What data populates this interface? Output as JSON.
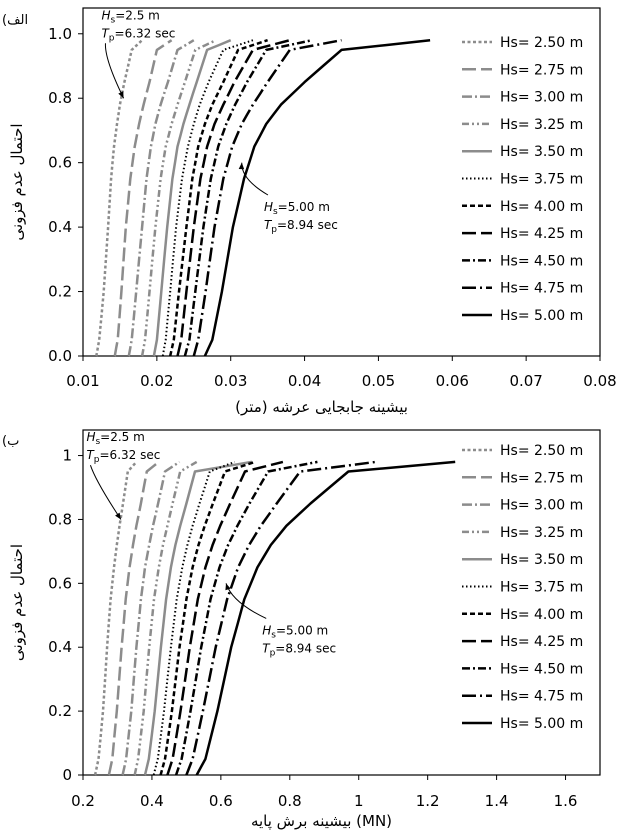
{
  "chart_data": [
    {
      "type": "line",
      "panel_label": "(الف",
      "xlabel": "بیشینه جابجایی عرشه (متر)",
      "ylabel": "احتمال عدم فزونی",
      "xlim": [
        0.01,
        0.08
      ],
      "ylim": [
        0,
        1.08
      ],
      "xticks": [
        0.01,
        0.02,
        0.03,
        0.04,
        0.05,
        0.06,
        0.07,
        0.08
      ],
      "xtick_labels": [
        "0.01",
        "0.02",
        "0.03",
        "0.04",
        "0.05",
        "0.06",
        "0.07",
        "0.08"
      ],
      "yticks": [
        0,
        0.2,
        0.4,
        0.6,
        0.8,
        1.0
      ],
      "ytick_labels": [
        "0.0",
        "0.2",
        "0.4",
        "0.6",
        "0.8",
        "1.0"
      ],
      "grid": false,
      "legend_position": "right",
      "annotations": [
        {
          "hs": "=2.5 m",
          "tp": "=6.32 sec",
          "at": [
            0.0125,
            1.045
          ],
          "arrow_to": [
            0.0155,
            0.8
          ]
        },
        {
          "hs": "=5.00 m",
          "tp": "=8.94 sec",
          "at": [
            0.0345,
            0.45
          ],
          "arrow_to": [
            0.0315,
            0.6
          ]
        }
      ],
      "series": [
        {
          "name": "Hs= 2.50 m",
          "x": [
            0.0118,
            0.0122,
            0.0128,
            0.0134,
            0.0138,
            0.0142,
            0.0146,
            0.015,
            0.0156,
            0.0166,
            0.018
          ],
          "y": [
            0,
            0.05,
            0.2,
            0.4,
            0.55,
            0.65,
            0.72,
            0.78,
            0.85,
            0.95,
            0.98
          ]
        },
        {
          "name": "Hs= 2.75 m",
          "x": [
            0.0143,
            0.0147,
            0.0152,
            0.0158,
            0.0164,
            0.017,
            0.0176,
            0.0182,
            0.019,
            0.02,
            0.022
          ],
          "y": [
            0,
            0.05,
            0.2,
            0.4,
            0.55,
            0.65,
            0.72,
            0.78,
            0.85,
            0.95,
            0.98
          ]
        },
        {
          "name": "Hs= 3.00 m",
          "x": [
            0.0162,
            0.0166,
            0.0172,
            0.018,
            0.0186,
            0.0192,
            0.0198,
            0.0205,
            0.0215,
            0.0228,
            0.025
          ],
          "y": [
            0,
            0.05,
            0.2,
            0.4,
            0.55,
            0.65,
            0.72,
            0.78,
            0.85,
            0.95,
            0.98
          ]
        },
        {
          "name": "Hs= 3.25 m",
          "x": [
            0.018,
            0.0184,
            0.019,
            0.0198,
            0.0205,
            0.0212,
            0.022,
            0.0228,
            0.0238,
            0.0252,
            0.028
          ],
          "y": [
            0,
            0.05,
            0.2,
            0.4,
            0.55,
            0.65,
            0.72,
            0.78,
            0.85,
            0.95,
            0.98
          ]
        },
        {
          "name": "Hs= 3.50 m",
          "x": [
            0.0196,
            0.02,
            0.0206,
            0.0214,
            0.0221,
            0.0228,
            0.0236,
            0.0244,
            0.0254,
            0.0268,
            0.03
          ],
          "y": [
            0,
            0.05,
            0.2,
            0.4,
            0.55,
            0.65,
            0.72,
            0.78,
            0.85,
            0.95,
            0.98
          ]
        },
        {
          "name": "Hs= 3.75 m",
          "x": [
            0.0208,
            0.0212,
            0.0218,
            0.0226,
            0.0234,
            0.0242,
            0.025,
            0.0258,
            0.027,
            0.029,
            0.033
          ],
          "y": [
            0,
            0.05,
            0.2,
            0.4,
            0.55,
            0.65,
            0.72,
            0.78,
            0.85,
            0.95,
            0.98
          ]
        },
        {
          "name": "Hs= 4.00 m",
          "x": [
            0.0218,
            0.0223,
            0.023,
            0.024,
            0.0248,
            0.0256,
            0.0265,
            0.0275,
            0.029,
            0.031,
            0.035
          ],
          "y": [
            0,
            0.05,
            0.2,
            0.4,
            0.55,
            0.65,
            0.72,
            0.78,
            0.85,
            0.95,
            0.98
          ]
        },
        {
          "name": "Hs= 4.25 m",
          "x": [
            0.0228,
            0.0233,
            0.024,
            0.025,
            0.0259,
            0.0268,
            0.0278,
            0.029,
            0.0305,
            0.033,
            0.038
          ],
          "y": [
            0,
            0.05,
            0.2,
            0.4,
            0.55,
            0.65,
            0.72,
            0.78,
            0.85,
            0.95,
            0.98
          ]
        },
        {
          "name": "Hs= 4.50 m",
          "x": [
            0.0238,
            0.0244,
            0.0252,
            0.0263,
            0.0273,
            0.0283,
            0.0294,
            0.0306,
            0.0322,
            0.0348,
            0.041
          ],
          "y": [
            0,
            0.05,
            0.2,
            0.4,
            0.55,
            0.65,
            0.72,
            0.78,
            0.85,
            0.95,
            0.98
          ]
        },
        {
          "name": "Hs= 4.75 m",
          "x": [
            0.025,
            0.0256,
            0.0266,
            0.0278,
            0.029,
            0.0302,
            0.0315,
            0.033,
            0.035,
            0.038,
            0.045
          ],
          "y": [
            0,
            0.05,
            0.2,
            0.4,
            0.55,
            0.65,
            0.72,
            0.78,
            0.85,
            0.95,
            0.98
          ]
        },
        {
          "name": "Hs= 5.00 m",
          "x": [
            0.0265,
            0.0275,
            0.0288,
            0.0303,
            0.0318,
            0.0332,
            0.0348,
            0.0368,
            0.04,
            0.045,
            0.057
          ],
          "y": [
            0,
            0.05,
            0.2,
            0.4,
            0.55,
            0.65,
            0.72,
            0.78,
            0.85,
            0.95,
            0.98
          ]
        }
      ]
    },
    {
      "type": "line",
      "panel_label": "(ب",
      "xlabel": "بیشینه برش پایه (MN)",
      "ylabel": "احتمال عدم فزونی",
      "xlim": [
        0.2,
        1.7
      ],
      "ylim": [
        0,
        1.08
      ],
      "xticks": [
        0.2,
        0.4,
        0.6,
        0.8,
        1.0,
        1.2,
        1.4,
        1.6
      ],
      "xtick_labels": [
        "0.2",
        "0.4",
        "0.6",
        "0.8",
        "1",
        "1.2",
        "1.4",
        "1.6"
      ],
      "yticks": [
        0,
        0.2,
        0.4,
        0.6,
        0.8,
        1.0
      ],
      "ytick_labels": [
        "0",
        "0.2",
        "0.4",
        "0.6",
        "0.8",
        "1"
      ],
      "grid": false,
      "legend_position": "right",
      "annotations": [
        {
          "hs": "=2.5 m",
          "tp": "=6.32 sec",
          "at": [
            0.21,
            1.045
          ],
          "arrow_to": [
            0.31,
            0.8
          ]
        },
        {
          "hs": "=5.00 m",
          "tp": "=8.94 sec",
          "at": [
            0.72,
            0.44
          ],
          "arrow_to": [
            0.615,
            0.6
          ]
        }
      ],
      "series": [
        {
          "name": "Hs= 2.50 m",
          "x": [
            0.235,
            0.245,
            0.258,
            0.27,
            0.28,
            0.29,
            0.298,
            0.306,
            0.316,
            0.33,
            0.355
          ],
          "y": [
            0,
            0.05,
            0.2,
            0.4,
            0.55,
            0.65,
            0.72,
            0.78,
            0.85,
            0.95,
            0.98
          ]
        },
        {
          "name": "Hs= 2.75 m",
          "x": [
            0.275,
            0.285,
            0.298,
            0.312,
            0.324,
            0.335,
            0.345,
            0.355,
            0.368,
            0.385,
            0.42
          ],
          "y": [
            0,
            0.05,
            0.2,
            0.4,
            0.55,
            0.65,
            0.72,
            0.78,
            0.85,
            0.95,
            0.98
          ]
        },
        {
          "name": "Hs= 3.00 m",
          "x": [
            0.315,
            0.325,
            0.34,
            0.355,
            0.368,
            0.38,
            0.392,
            0.403,
            0.418,
            0.438,
            0.48
          ],
          "y": [
            0,
            0.05,
            0.2,
            0.4,
            0.55,
            0.65,
            0.72,
            0.78,
            0.85,
            0.95,
            0.98
          ]
        },
        {
          "name": "Hs= 3.25 m",
          "x": [
            0.35,
            0.36,
            0.376,
            0.392,
            0.406,
            0.42,
            0.432,
            0.445,
            0.46,
            0.482,
            0.53
          ],
          "y": [
            0,
            0.05,
            0.2,
            0.4,
            0.55,
            0.65,
            0.72,
            0.78,
            0.85,
            0.95,
            0.98
          ]
        },
        {
          "name": "Hs= 3.50 m",
          "x": [
            0.38,
            0.391,
            0.408,
            0.426,
            0.441,
            0.455,
            0.468,
            0.482,
            0.5,
            0.525,
            0.69
          ],
          "y": [
            0,
            0.05,
            0.2,
            0.4,
            0.55,
            0.65,
            0.72,
            0.78,
            0.85,
            0.95,
            0.98
          ]
        },
        {
          "name": "Hs= 3.75 m",
          "x": [
            0.405,
            0.417,
            0.435,
            0.455,
            0.472,
            0.488,
            0.503,
            0.518,
            0.538,
            0.568,
            0.64
          ],
          "y": [
            0,
            0.05,
            0.2,
            0.4,
            0.55,
            0.65,
            0.72,
            0.78,
            0.85,
            0.95,
            0.98
          ]
        },
        {
          "name": "Hs= 4.00 m",
          "x": [
            0.425,
            0.438,
            0.458,
            0.48,
            0.5,
            0.518,
            0.535,
            0.553,
            0.577,
            0.612,
            0.7
          ],
          "y": [
            0,
            0.05,
            0.2,
            0.4,
            0.55,
            0.65,
            0.72,
            0.78,
            0.85,
            0.95,
            0.98
          ]
        },
        {
          "name": "Hs= 4.25 m",
          "x": [
            0.445,
            0.46,
            0.483,
            0.51,
            0.533,
            0.555,
            0.576,
            0.598,
            0.627,
            0.67,
            0.78
          ],
          "y": [
            0,
            0.05,
            0.2,
            0.4,
            0.55,
            0.65,
            0.72,
            0.78,
            0.85,
            0.95,
            0.98
          ]
        },
        {
          "name": "Hs= 4.50 m",
          "x": [
            0.47,
            0.486,
            0.512,
            0.543,
            0.57,
            0.596,
            0.621,
            0.648,
            0.683,
            0.737,
            0.88
          ],
          "y": [
            0,
            0.05,
            0.2,
            0.4,
            0.55,
            0.65,
            0.72,
            0.78,
            0.85,
            0.95,
            0.98
          ]
        },
        {
          "name": "Hs= 4.75 m",
          "x": [
            0.5,
            0.518,
            0.548,
            0.585,
            0.618,
            0.65,
            0.682,
            0.716,
            0.762,
            0.83,
            1.05
          ],
          "y": [
            0,
            0.05,
            0.2,
            0.4,
            0.55,
            0.65,
            0.72,
            0.78,
            0.85,
            0.95,
            0.98
          ]
        },
        {
          "name": "Hs= 5.00 m",
          "x": [
            0.53,
            0.555,
            0.59,
            0.63,
            0.668,
            0.706,
            0.745,
            0.79,
            0.86,
            0.97,
            1.28
          ],
          "y": [
            0,
            0.05,
            0.2,
            0.4,
            0.55,
            0.65,
            0.72,
            0.78,
            0.85,
            0.95,
            0.98
          ]
        }
      ]
    }
  ],
  "series_styles": [
    {
      "color": "#8c8c8c",
      "dash": "3 2.5",
      "width": 2.5
    },
    {
      "color": "#8c8c8c",
      "dash": "14 5",
      "width": 2.5
    },
    {
      "color": "#8c8c8c",
      "dash": "10 3 2 3",
      "width": 2.5
    },
    {
      "color": "#8c8c8c",
      "dash": "7 3 2 3 2 3",
      "width": 2.5
    },
    {
      "color": "#8c8c8c",
      "dash": "",
      "width": 2.5
    },
    {
      "color": "#000000",
      "dash": "1.5 2.5",
      "width": 2
    },
    {
      "color": "#000000",
      "dash": "5 3",
      "width": 2.5
    },
    {
      "color": "#000000",
      "dash": "14 5",
      "width": 2.5
    },
    {
      "color": "#000000",
      "dash": "8 3 2 3",
      "width": 2.5
    },
    {
      "color": "#000000",
      "dash": "14 4 2 4",
      "width": 2.5
    },
    {
      "color": "#000000",
      "dash": "",
      "width": 2.5
    }
  ]
}
